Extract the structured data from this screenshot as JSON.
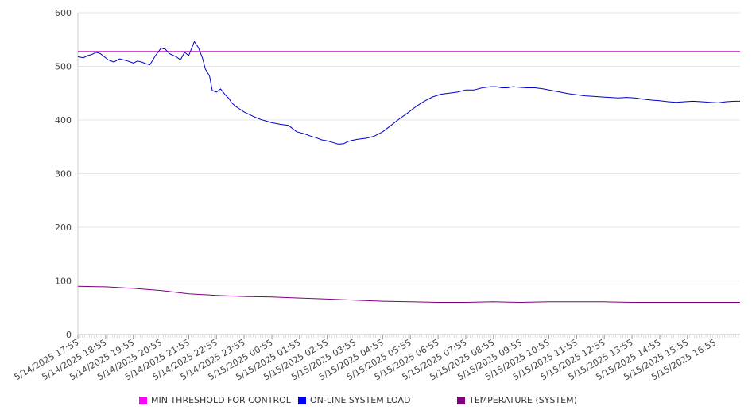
{
  "chart_data": {
    "type": "line",
    "title": "",
    "xlabel": "",
    "ylabel": "",
    "ylim": [
      0,
      600
    ],
    "y_ticks": [
      0,
      100,
      200,
      300,
      400,
      500,
      600
    ],
    "grid": true,
    "legend_position": "bottom",
    "x_tick_labels": [
      "5/14/2025 17:55",
      "5/14/2025 18:55",
      "5/14/2025 19:55",
      "5/14/2025 20:55",
      "5/14/2025 21:55",
      "5/14/2025 22:55",
      "5/14/2025 23:55",
      "5/15/2025 00:55",
      "5/15/2025 01:55",
      "5/15/2025 02:55",
      "5/15/2025 03:55",
      "5/15/2025 04:55",
      "5/15/2025 05:55",
      "5/15/2025 06:55",
      "5/15/2025 07:55",
      "5/15/2025 08:55",
      "5/15/2025 09:55",
      "5/15/2025 10:55",
      "5/15/2025 11:55",
      "5/15/2025 12:55",
      "5/15/2025 13:55",
      "5/15/2025 14:55",
      "5/15/2025 15:55",
      "5/15/2025 16:55"
    ],
    "x_range_hours": [
      0,
      23.9
    ],
    "series": [
      {
        "name": "MIN THRESHOLD FOR CONTROL",
        "color": "#cc33cc",
        "x": [
          0,
          23.9
        ],
        "y": [
          528,
          528
        ]
      },
      {
        "name": "ON-LINE SYSTEM LOAD",
        "color": "#0000cc",
        "x": [
          0,
          0.2,
          0.35,
          0.5,
          0.65,
          0.8,
          0.95,
          1.1,
          1.3,
          1.5,
          1.65,
          1.8,
          2.0,
          2.15,
          2.3,
          2.45,
          2.6,
          2.8,
          3.0,
          3.15,
          3.3,
          3.45,
          3.55,
          3.7,
          3.85,
          4.0,
          4.2,
          4.35,
          4.5,
          4.6,
          4.75,
          4.85,
          5.0,
          5.15,
          5.3,
          5.45,
          5.55,
          5.7,
          5.85,
          6.0,
          6.2,
          6.4,
          6.6,
          6.8,
          7.0,
          7.3,
          7.6,
          7.9,
          8.2,
          8.4,
          8.6,
          8.8,
          9.0,
          9.2,
          9.4,
          9.6,
          9.75,
          9.9,
          10.1,
          10.4,
          10.7,
          11.0,
          11.3,
          11.6,
          11.9,
          12.2,
          12.5,
          12.8,
          13.1,
          13.4,
          13.7,
          14.0,
          14.3,
          14.6,
          14.9,
          15.1,
          15.3,
          15.5,
          15.7,
          15.9,
          16.2,
          16.5,
          16.8,
          17.1,
          17.4,
          17.7,
          18.0,
          18.3,
          18.6,
          18.9,
          19.2,
          19.5,
          19.8,
          20.1,
          20.4,
          20.7,
          21.0,
          21.3,
          21.6,
          21.9,
          22.2,
          22.5,
          22.8,
          23.1,
          23.4,
          23.7,
          23.9
        ],
        "y": [
          518,
          516,
          520,
          522,
          526,
          524,
          518,
          512,
          508,
          514,
          512,
          510,
          506,
          510,
          508,
          505,
          503,
          520,
          534,
          532,
          524,
          520,
          518,
          512,
          526,
          520,
          546,
          535,
          515,
          495,
          482,
          455,
          452,
          458,
          448,
          440,
          432,
          425,
          420,
          415,
          410,
          405,
          401,
          398,
          395,
          392,
          390,
          378,
          374,
          370,
          367,
          363,
          361,
          358,
          355,
          356,
          360,
          362,
          364,
          366,
          370,
          378,
          390,
          402,
          413,
          425,
          435,
          443,
          448,
          450,
          452,
          456,
          456,
          460,
          462,
          462,
          460,
          460,
          462,
          461,
          460,
          460,
          458,
          455,
          452,
          449,
          447,
          445,
          444,
          443,
          442,
          441,
          442,
          441,
          439,
          437,
          436,
          434,
          433,
          434,
          435,
          434,
          433,
          432,
          434,
          435,
          435
        ]
      },
      {
        "name": "TEMPERATURE (SYSTEM)",
        "color": "#800080",
        "x": [
          0,
          1,
          2,
          3,
          4,
          5,
          6,
          7,
          8,
          9,
          10,
          11,
          12,
          13,
          14,
          15,
          16,
          17,
          18,
          19,
          20,
          21,
          22,
          23,
          23.9
        ],
        "y": [
          90,
          89,
          86,
          82,
          76,
          73,
          71,
          70,
          68,
          66,
          64,
          62,
          61,
          60,
          60,
          61,
          60,
          61,
          61,
          61,
          60,
          60,
          60,
          60,
          60
        ]
      }
    ]
  }
}
